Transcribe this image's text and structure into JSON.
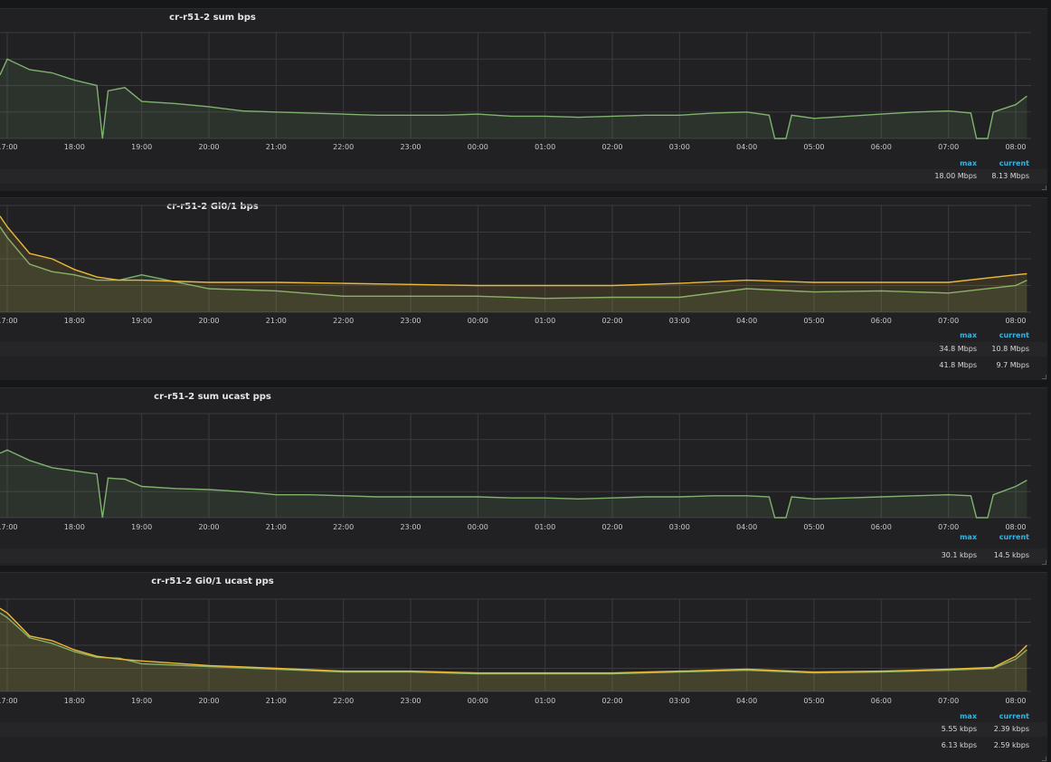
{
  "x_ticks": [
    "17:00",
    "18:00",
    "19:00",
    "20:00",
    "21:00",
    "22:00",
    "23:00",
    "00:00",
    "01:00",
    "02:00",
    "03:00",
    "04:00",
    "05:00",
    "06:00",
    "07:00",
    "08:00"
  ],
  "colors": {
    "green": "#7eb26d",
    "yellow": "#eab839",
    "grid": "#3a3a3f",
    "header": "#33b5e5"
  },
  "legend_headers": {
    "max": "max",
    "current": "current"
  },
  "panels": [
    {
      "id": "p1",
      "title": "cr-r51-2 sum bps",
      "series": [
        {
          "color": "green",
          "max": "18.00 Mbps",
          "current": "8.13 Mbps"
        }
      ]
    },
    {
      "id": "p2",
      "title": "cr-r51-2 Gi0/1 bps",
      "series": [
        {
          "color": "yellow",
          "max": "34.8 Mbps",
          "current": "10.8 Mbps"
        },
        {
          "color": "green",
          "max": "41.8 Mbps",
          "current": "9.7 Mbps"
        }
      ]
    },
    {
      "id": "p3",
      "title": "cr-r51-2 sum ucast pps",
      "series": [
        {
          "color": "green",
          "max": "30.1 kbps",
          "current": "14.5 kbps"
        }
      ]
    },
    {
      "id": "p4",
      "title": "cr-r51-2 Gi0/1 ucast pps",
      "series": [
        {
          "color": "yellow",
          "max": "5.55 kbps",
          "current": "2.39 kbps"
        },
        {
          "color": "green",
          "max": "6.13 kbps",
          "current": "2.59 kbps"
        }
      ]
    }
  ],
  "chart_data": [
    {
      "type": "area",
      "title": "cr-r51-2 sum bps",
      "x": [
        "16:40",
        "17:00",
        "17:20",
        "17:40",
        "18:00",
        "18:20",
        "18:25",
        "18:30",
        "18:45",
        "19:00",
        "19:30",
        "20:00",
        "20:30",
        "21:00",
        "21:30",
        "22:00",
        "22:30",
        "23:00",
        "23:30",
        "00:00",
        "00:30",
        "01:00",
        "01:30",
        "02:00",
        "02:30",
        "03:00",
        "03:30",
        "04:00",
        "04:20",
        "04:25",
        "04:35",
        "04:40",
        "05:00",
        "05:30",
        "06:00",
        "06:30",
        "07:00",
        "07:20",
        "07:25",
        "07:35",
        "07:40",
        "08:00",
        "08:10"
      ],
      "series": [
        {
          "values": [
            0.6,
            0.75,
            0.65,
            0.62,
            0.55,
            0.5,
            0.0,
            0.45,
            0.48,
            0.35,
            0.33,
            0.3,
            0.26,
            0.25,
            0.24,
            0.23,
            0.22,
            0.22,
            0.22,
            0.23,
            0.21,
            0.21,
            0.2,
            0.21,
            0.22,
            0.22,
            0.24,
            0.25,
            0.22,
            0.0,
            0.0,
            0.22,
            0.19,
            0.21,
            0.23,
            0.25,
            0.26,
            0.24,
            0.0,
            0.0,
            0.25,
            0.32,
            0.4
          ]
        }
      ]
    },
    {
      "type": "area",
      "title": "cr-r51-2 Gi0/1 bps",
      "x": [
        "16:40",
        "17:00",
        "17:20",
        "17:40",
        "18:00",
        "18:20",
        "18:40",
        "19:00",
        "20:00",
        "21:00",
        "22:00",
        "23:00",
        "00:00",
        "01:00",
        "02:00",
        "03:00",
        "04:00",
        "05:00",
        "06:00",
        "07:00",
        "08:00",
        "08:10"
      ],
      "series": [
        {
          "values": [
            0.9,
            0.8,
            0.55,
            0.5,
            0.4,
            0.33,
            0.3,
            0.3,
            0.28,
            0.28,
            0.27,
            0.26,
            0.25,
            0.25,
            0.25,
            0.27,
            0.3,
            0.28,
            0.28,
            0.28,
            0.35,
            0.36
          ]
        },
        {
          "values": [
            0.8,
            0.7,
            0.45,
            0.38,
            0.35,
            0.3,
            0.3,
            0.35,
            0.22,
            0.2,
            0.15,
            0.15,
            0.15,
            0.13,
            0.14,
            0.14,
            0.22,
            0.19,
            0.2,
            0.18,
            0.25,
            0.3
          ]
        }
      ]
    },
    {
      "type": "area",
      "title": "cr-r51-2 sum ucast pps",
      "x": [
        "16:40",
        "17:00",
        "17:20",
        "17:40",
        "18:00",
        "18:20",
        "18:25",
        "18:30",
        "18:45",
        "19:00",
        "19:30",
        "20:00",
        "20:30",
        "21:00",
        "21:30",
        "22:00",
        "22:30",
        "23:00",
        "23:30",
        "00:00",
        "00:30",
        "01:00",
        "01:30",
        "02:00",
        "02:30",
        "03:00",
        "03:30",
        "04:00",
        "04:20",
        "04:25",
        "04:35",
        "04:40",
        "05:00",
        "05:30",
        "06:00",
        "06:30",
        "07:00",
        "07:20",
        "07:25",
        "07:35",
        "07:40",
        "08:00",
        "08:10"
      ],
      "series": [
        {
          "values": [
            0.62,
            0.65,
            0.55,
            0.48,
            0.45,
            0.42,
            0.0,
            0.38,
            0.37,
            0.3,
            0.28,
            0.27,
            0.25,
            0.22,
            0.22,
            0.21,
            0.2,
            0.2,
            0.2,
            0.2,
            0.19,
            0.19,
            0.18,
            0.19,
            0.2,
            0.2,
            0.21,
            0.21,
            0.2,
            0.0,
            0.0,
            0.2,
            0.18,
            0.19,
            0.2,
            0.21,
            0.22,
            0.21,
            0.0,
            0.0,
            0.22,
            0.3,
            0.36
          ]
        }
      ]
    },
    {
      "type": "area",
      "title": "cr-r51-2 Gi0/1 ucast pps",
      "x": [
        "16:40",
        "17:00",
        "17:20",
        "17:40",
        "18:00",
        "18:20",
        "18:40",
        "19:00",
        "20:00",
        "21:00",
        "22:00",
        "23:00",
        "00:00",
        "01:00",
        "02:00",
        "03:00",
        "04:00",
        "05:00",
        "06:00",
        "07:00",
        "07:40",
        "08:00",
        "08:10"
      ],
      "series": [
        {
          "values": [
            0.9,
            0.85,
            0.6,
            0.55,
            0.45,
            0.38,
            0.35,
            0.33,
            0.28,
            0.25,
            0.22,
            0.22,
            0.2,
            0.2,
            0.2,
            0.22,
            0.24,
            0.21,
            0.22,
            0.24,
            0.26,
            0.38,
            0.5
          ]
        },
        {
          "values": [
            0.85,
            0.8,
            0.58,
            0.52,
            0.43,
            0.37,
            0.36,
            0.3,
            0.27,
            0.24,
            0.21,
            0.21,
            0.19,
            0.19,
            0.19,
            0.21,
            0.23,
            0.2,
            0.21,
            0.23,
            0.25,
            0.35,
            0.45
          ]
        }
      ]
    }
  ]
}
